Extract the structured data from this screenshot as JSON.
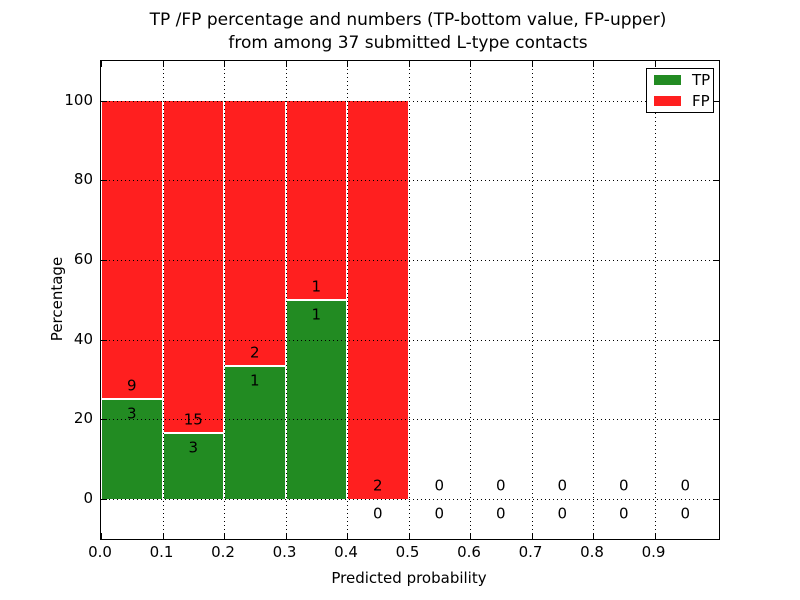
{
  "chart_data": {
    "type": "bar",
    "stacked": true,
    "title_line1": "TP /FP percentage and numbers (TP-bottom value, FP-upper)",
    "title_line2": "from among 37 submitted L-type contacts",
    "xlabel": "Predicted probability",
    "ylabel": "Percentage",
    "xlim": [
      0.0,
      1.005
    ],
    "ylim": [
      -10,
      110
    ],
    "x_ticks": [
      0.0,
      0.1,
      0.2,
      0.3,
      0.4,
      0.5,
      0.6,
      0.7,
      0.8,
      0.9
    ],
    "x_tick_labels": [
      "0.0",
      "0.1",
      "0.2",
      "0.3",
      "0.4",
      "0.5",
      "0.6",
      "0.7",
      "0.8",
      "0.9"
    ],
    "y_ticks": [
      0,
      20,
      40,
      60,
      80,
      100
    ],
    "y_tick_labels": [
      "0",
      "20",
      "40",
      "60",
      "80",
      "100"
    ],
    "grid": true,
    "grid_style": "dotted",
    "total_contacts": 37,
    "bin_width": 0.1,
    "bins": [
      {
        "range": [
          0.0,
          0.1
        ],
        "tp": 3,
        "fp": 9,
        "tp_pct": 25.0,
        "fp_pct": 75.0,
        "tp_label": "3",
        "fp_label": "9"
      },
      {
        "range": [
          0.1,
          0.2
        ],
        "tp": 3,
        "fp": 15,
        "tp_pct": 16.667,
        "fp_pct": 83.333,
        "tp_label": "3",
        "fp_label": "15"
      },
      {
        "range": [
          0.2,
          0.3
        ],
        "tp": 1,
        "fp": 2,
        "tp_pct": 33.333,
        "fp_pct": 66.667,
        "tp_label": "1",
        "fp_label": "2"
      },
      {
        "range": [
          0.3,
          0.4
        ],
        "tp": 1,
        "fp": 1,
        "tp_pct": 50.0,
        "fp_pct": 50.0,
        "tp_label": "1",
        "fp_label": "1"
      },
      {
        "range": [
          0.4,
          0.5
        ],
        "tp": 0,
        "fp": 2,
        "tp_pct": 0.0,
        "fp_pct": 100.0,
        "tp_label": "0",
        "fp_label": "2"
      },
      {
        "range": [
          0.5,
          0.6
        ],
        "tp": 0,
        "fp": 0,
        "tp_pct": 0.0,
        "fp_pct": 0.0,
        "tp_label": "0",
        "fp_label": "0"
      },
      {
        "range": [
          0.6,
          0.7
        ],
        "tp": 0,
        "fp": 0,
        "tp_pct": 0.0,
        "fp_pct": 0.0,
        "tp_label": "0",
        "fp_label": "0"
      },
      {
        "range": [
          0.7,
          0.8
        ],
        "tp": 0,
        "fp": 0,
        "tp_pct": 0.0,
        "fp_pct": 0.0,
        "tp_label": "0",
        "fp_label": "0"
      },
      {
        "range": [
          0.8,
          0.9
        ],
        "tp": 0,
        "fp": 0,
        "tp_pct": 0.0,
        "fp_pct": 0.0,
        "tp_label": "0",
        "fp_label": "0"
      },
      {
        "range": [
          0.9,
          1.0
        ],
        "tp": 0,
        "fp": 0,
        "tp_pct": 0.0,
        "fp_pct": 0.0,
        "tp_label": "0",
        "fp_label": "0"
      }
    ],
    "legend": {
      "position": "upper right",
      "entries": [
        {
          "label": "TP",
          "color": "#228B22"
        },
        {
          "label": "FP",
          "color": "#FF1F1F"
        }
      ]
    },
    "colors": {
      "tp": "#228B22",
      "fp": "#FF1F1F",
      "bar_edge": "#FFFFFF",
      "grid": "#000000",
      "text": "#000000",
      "background": "#FFFFFF"
    }
  }
}
